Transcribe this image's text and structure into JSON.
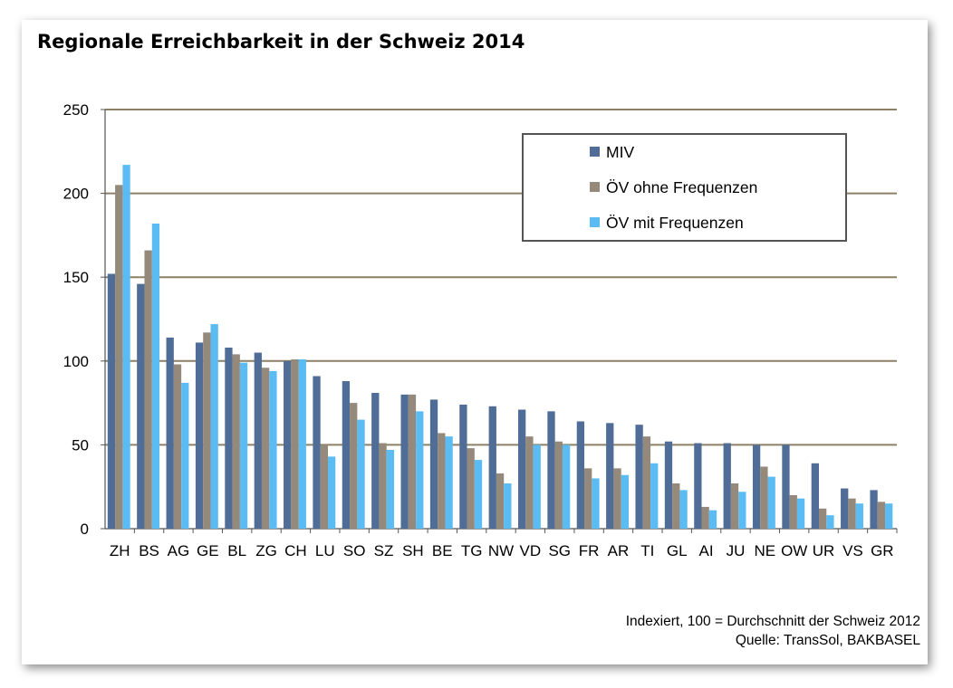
{
  "chart_data": {
    "type": "bar",
    "title": "Regionale Erreichbarkeit in der Schweiz 2014",
    "xlabel": "",
    "ylabel": "",
    "ylim": [
      0,
      250
    ],
    "yticks": [
      0,
      50,
      100,
      150,
      200,
      250
    ],
    "grid": true,
    "legend_position": "top-right",
    "categories": [
      "ZH",
      "BS",
      "AG",
      "GE",
      "BL",
      "ZG",
      "CH",
      "LU",
      "SO",
      "SZ",
      "SH",
      "BE",
      "TG",
      "NW",
      "VD",
      "SG",
      "FR",
      "AR",
      "TI",
      "GL",
      "AI",
      "JU",
      "NE",
      "OW",
      "UR",
      "VS",
      "GR"
    ],
    "series": [
      {
        "name": "MIV",
        "color": "#4f6d96",
        "values": [
          152,
          146,
          114,
          111,
          108,
          105,
          100,
          91,
          88,
          81,
          80,
          77,
          74,
          73,
          71,
          70,
          64,
          63,
          62,
          52,
          51,
          51,
          50,
          50,
          39,
          24,
          23
        ]
      },
      {
        "name": "ÖV ohne Frequenzen",
        "color": "#94897a",
        "values": [
          205,
          166,
          98,
          117,
          104,
          96,
          101,
          50,
          75,
          51,
          80,
          57,
          48,
          33,
          55,
          52,
          36,
          36,
          55,
          27,
          13,
          27,
          37,
          20,
          12,
          18,
          16
        ]
      },
      {
        "name": "ÖV mit Frequenzen",
        "color": "#5bbcf4",
        "values": [
          217,
          182,
          87,
          122,
          99,
          94,
          101,
          43,
          65,
          47,
          70,
          55,
          41,
          27,
          50,
          50,
          30,
          32,
          39,
          23,
          11,
          22,
          31,
          18,
          8,
          15,
          15
        ]
      }
    ]
  },
  "footer": {
    "note": "Indexiert, 100 = Durchschnitt der Schweiz 2012",
    "source": "Quelle: TransSol, BAKBASEL"
  }
}
